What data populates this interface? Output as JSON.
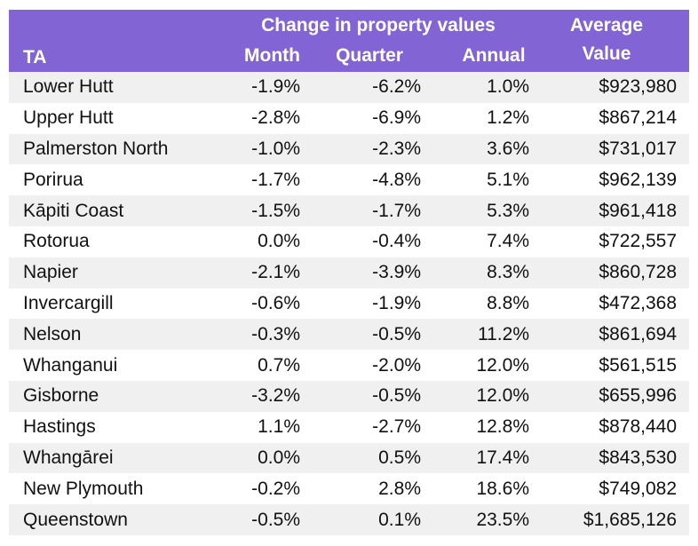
{
  "header": {
    "group_title": "Change in property values",
    "avg_line1": "Average",
    "avg_line2": "Value",
    "col_ta": "TA",
    "col_month": "Month",
    "col_quarter": "Quarter",
    "col_annual": "Annual"
  },
  "colors": {
    "header_bg": "#8264d5",
    "header_text": "#ffffff",
    "row_shade": "#f0f0f0"
  },
  "rows": [
    {
      "ta": "Lower Hutt",
      "month": "-1.9%",
      "quarter": "-6.2%",
      "annual": "1.0%",
      "avg": "$923,980"
    },
    {
      "ta": "Upper Hutt",
      "month": "-2.8%",
      "quarter": "-6.9%",
      "annual": "1.2%",
      "avg": "$867,214"
    },
    {
      "ta": "Palmerston North",
      "month": "-1.0%",
      "quarter": "-2.3%",
      "annual": "3.6%",
      "avg": "$731,017"
    },
    {
      "ta": "Porirua",
      "month": "-1.7%",
      "quarter": "-4.8%",
      "annual": "5.1%",
      "avg": "$962,139"
    },
    {
      "ta": "Kāpiti Coast",
      "month": "-1.5%",
      "quarter": "-1.7%",
      "annual": "5.3%",
      "avg": "$961,418"
    },
    {
      "ta": "Rotorua",
      "month": "0.0%",
      "quarter": "-0.4%",
      "annual": "7.4%",
      "avg": "$722,557"
    },
    {
      "ta": "Napier",
      "month": "-2.1%",
      "quarter": "-3.9%",
      "annual": "8.3%",
      "avg": "$860,728"
    },
    {
      "ta": "Invercargill",
      "month": "-0.6%",
      "quarter": "-1.9%",
      "annual": "8.8%",
      "avg": "$472,368"
    },
    {
      "ta": "Nelson",
      "month": "-0.3%",
      "quarter": "-0.5%",
      "annual": "11.2%",
      "avg": "$861,694"
    },
    {
      "ta": "Whanganui",
      "month": "0.7%",
      "quarter": "-2.0%",
      "annual": "12.0%",
      "avg": "$561,515"
    },
    {
      "ta": "Gisborne",
      "month": "-3.2%",
      "quarter": "-0.5%",
      "annual": "12.0%",
      "avg": "$655,996"
    },
    {
      "ta": "Hastings",
      "month": "1.1%",
      "quarter": "-2.7%",
      "annual": "12.8%",
      "avg": "$878,440"
    },
    {
      "ta": "Whangārei",
      "month": "0.0%",
      "quarter": "0.5%",
      "annual": "17.4%",
      "avg": "$843,530"
    },
    {
      "ta": "New Plymouth",
      "month": "-0.2%",
      "quarter": "2.8%",
      "annual": "18.6%",
      "avg": "$749,082"
    },
    {
      "ta": "Queenstown",
      "month": "-0.5%",
      "quarter": "0.1%",
      "annual": "23.5%",
      "avg": "$1,685,126"
    }
  ]
}
